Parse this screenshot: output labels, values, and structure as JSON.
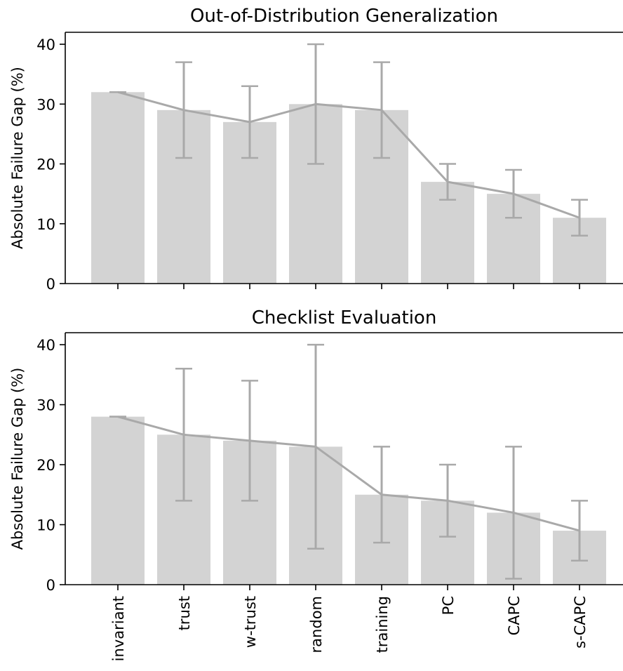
{
  "chart_data": [
    {
      "type": "bar",
      "title": "Out-of-Distribution Generalization",
      "ylabel": "Absolute Failure Gap (%)",
      "xlabel": "",
      "ylim": [
        0,
        42
      ],
      "yticks": [
        0,
        10,
        20,
        30,
        40
      ],
      "categories": [
        "invariant",
        "trust",
        "w-trust",
        "random",
        "training",
        "PC",
        "CAPC",
        "s-CAPC"
      ],
      "values": [
        32,
        29,
        27,
        30,
        29,
        17,
        15,
        11
      ],
      "error_low": [
        32,
        21,
        21,
        20,
        21,
        14,
        11,
        8
      ],
      "error_high": [
        32,
        37,
        33,
        40,
        37,
        20,
        19,
        14
      ],
      "show_xticklabels": false
    },
    {
      "type": "bar",
      "title": "Checklist Evaluation",
      "ylabel": "Absolute Failure Gap (%)",
      "xlabel": "",
      "ylim": [
        0,
        42
      ],
      "yticks": [
        0,
        10,
        20,
        30,
        40
      ],
      "categories": [
        "invariant",
        "trust",
        "w-trust",
        "random",
        "training",
        "PC",
        "CAPC",
        "s-CAPC"
      ],
      "values": [
        28,
        25,
        24,
        23,
        15,
        14,
        12,
        9
      ],
      "error_low": [
        28,
        14,
        14,
        6,
        7,
        8,
        1,
        4
      ],
      "error_high": [
        28,
        36,
        34,
        40,
        23,
        20,
        23,
        14
      ],
      "show_xticklabels": true
    }
  ],
  "colors": {
    "bar": "#d3d3d3",
    "line": "#a9a9a9",
    "axis": "#000000"
  }
}
